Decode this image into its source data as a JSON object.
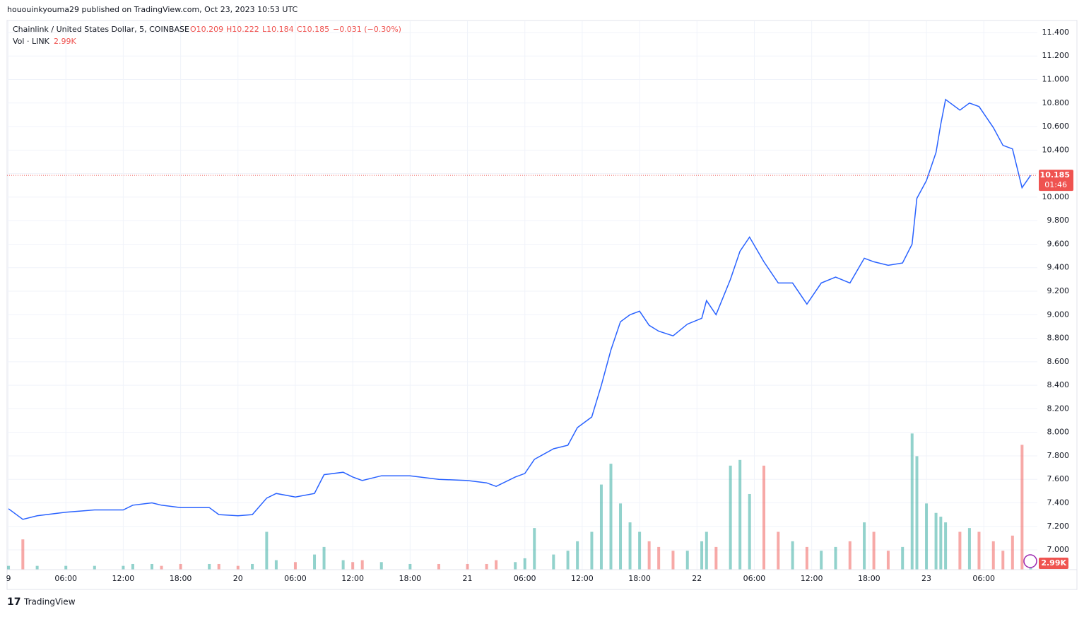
{
  "header": "hououinkyouma29 published on TradingView.com, Oct 23, 2023 10:53 UTC",
  "footer": "TradingView",
  "chart_data": {
    "type": "line",
    "title": "Chainlink / United States Dollar, 5, COINBASE",
    "legend": {
      "open": "O10.209",
      "high": "H10.222",
      "low": "L10.184",
      "close": "C10.185",
      "change": "−0.031 (−0.30%)"
    },
    "volume_title": "Vol · LINK",
    "volume_last_label": "2.99K",
    "last_price_label": "10.185",
    "countdown": "01:46",
    "x": [
      0,
      1.5,
      3,
      6,
      9,
      12,
      13,
      15,
      16,
      18,
      21,
      22,
      24,
      25.5,
      27,
      28,
      30,
      32,
      33,
      35,
      36,
      37,
      39,
      42,
      45,
      48,
      50,
      51,
      53,
      54,
      55,
      57,
      58.5,
      59.5,
      61,
      62,
      63,
      64,
      65,
      66,
      67,
      68,
      69.5,
      71,
      72.5,
      73,
      74,
      75.5,
      76.5,
      77.5,
      79,
      80.5,
      82,
      83.5,
      85,
      86.5,
      88,
      89.5,
      90.5,
      92,
      93.5,
      94.5,
      95,
      96,
      97,
      97.5,
      98,
      99.5,
      100.5,
      101.5,
      103,
      104,
      105,
      106,
      106.9
    ],
    "series": [
      {
        "name": "Price",
        "color": "#2962ff",
        "values": [
          7.35,
          7.26,
          7.29,
          7.32,
          7.34,
          7.34,
          7.38,
          7.4,
          7.38,
          7.36,
          7.36,
          7.3,
          7.29,
          7.3,
          7.44,
          7.48,
          7.45,
          7.48,
          7.64,
          7.66,
          7.62,
          7.59,
          7.63,
          7.63,
          7.6,
          7.59,
          7.57,
          7.54,
          7.62,
          7.65,
          7.77,
          7.86,
          7.89,
          8.04,
          8.13,
          8.4,
          8.7,
          8.94,
          9.0,
          9.03,
          8.91,
          8.86,
          8.82,
          8.92,
          8.97,
          9.12,
          9.0,
          9.3,
          9.54,
          9.66,
          9.45,
          9.27,
          9.27,
          9.09,
          9.27,
          9.32,
          9.27,
          9.48,
          9.45,
          9.42,
          9.44,
          9.6,
          9.99,
          10.14,
          10.38,
          10.62,
          10.83,
          10.74,
          10.8,
          10.77,
          10.59,
          10.44,
          10.41,
          10.08,
          10.185
        ]
      },
      {
        "name": "Vol",
        "color": "#26a69a",
        "axis": "y2",
        "values": [
          2000,
          16000,
          2000,
          2000,
          2000,
          2000,
          3000,
          3000,
          2000,
          3000,
          3000,
          3000,
          2000,
          3000,
          20000,
          5000,
          4000,
          8000,
          12000,
          5000,
          4000,
          5000,
          4000,
          3000,
          3000,
          3000,
          3000,
          5000,
          4000,
          6000,
          22000,
          8000,
          10000,
          15000,
          20000,
          45000,
          56000,
          35000,
          25000,
          20000,
          15000,
          12000,
          10000,
          10000,
          15000,
          20000,
          12000,
          55000,
          58000,
          40000,
          55000,
          20000,
          15000,
          12000,
          10000,
          12000,
          15000,
          25000,
          20000,
          10000,
          12000,
          72000,
          60000,
          35000,
          30000,
          28000,
          25000,
          20000,
          22000,
          20000,
          15000,
          10000,
          18000,
          66000,
          2990
        ]
      }
    ],
    "down_color": "#ef5350",
    "xlim": [
      -0.15,
      107.6
    ],
    "xticks": [
      {
        "value": 0,
        "label": "9"
      },
      {
        "value": 6,
        "label": "06:00"
      },
      {
        "value": 12,
        "label": "12:00"
      },
      {
        "value": 18,
        "label": "18:00"
      },
      {
        "value": 24,
        "label": "20"
      },
      {
        "value": 30,
        "label": "06:00"
      },
      {
        "value": 36,
        "label": "12:00"
      },
      {
        "value": 42,
        "label": "18:00"
      },
      {
        "value": 48,
        "label": "21"
      },
      {
        "value": 54,
        "label": "06:00"
      },
      {
        "value": 60,
        "label": "12:00"
      },
      {
        "value": 66,
        "label": "18:00"
      },
      {
        "value": 72,
        "label": "22"
      },
      {
        "value": 78,
        "label": "06:00"
      },
      {
        "value": 84,
        "label": "12:00"
      },
      {
        "value": 90,
        "label": "18:00"
      },
      {
        "value": 96,
        "label": "23"
      },
      {
        "value": 102,
        "label": "06:00"
      }
    ],
    "ylim": [
      6.832,
      11.496
    ],
    "yticks": [
      {
        "value": 7,
        "label": "7.000"
      },
      {
        "value": 7.2,
        "label": "7.200"
      },
      {
        "value": 7.4,
        "label": "7.400"
      },
      {
        "value": 7.6,
        "label": "7.600"
      },
      {
        "value": 7.8,
        "label": "7.800"
      },
      {
        "value": 8,
        "label": "8.000"
      },
      {
        "value": 8.2,
        "label": "8.200"
      },
      {
        "value": 8.4,
        "label": "8.400"
      },
      {
        "value": 8.6,
        "label": "8.600"
      },
      {
        "value": 8.8,
        "label": "8.800"
      },
      {
        "value": 9,
        "label": "9.000"
      },
      {
        "value": 9.2,
        "label": "9.200"
      },
      {
        "value": 9.4,
        "label": "9.400"
      },
      {
        "value": 9.6,
        "label": "9.600"
      },
      {
        "value": 9.8,
        "label": "9.800"
      },
      {
        "value": 10,
        "label": "10.000"
      },
      {
        "value": 10.2,
        "label": "10.200"
      },
      {
        "value": 10.4,
        "label": "10.400"
      },
      {
        "value": 10.6,
        "label": "10.600"
      },
      {
        "value": 10.8,
        "label": "10.800"
      },
      {
        "value": 11,
        "label": "11.000"
      },
      {
        "value": 11.2,
        "label": "11.200"
      },
      {
        "value": 11.4,
        "label": "11.400"
      }
    ],
    "y2lim": [
      0,
      290000
    ],
    "grid": true
  }
}
